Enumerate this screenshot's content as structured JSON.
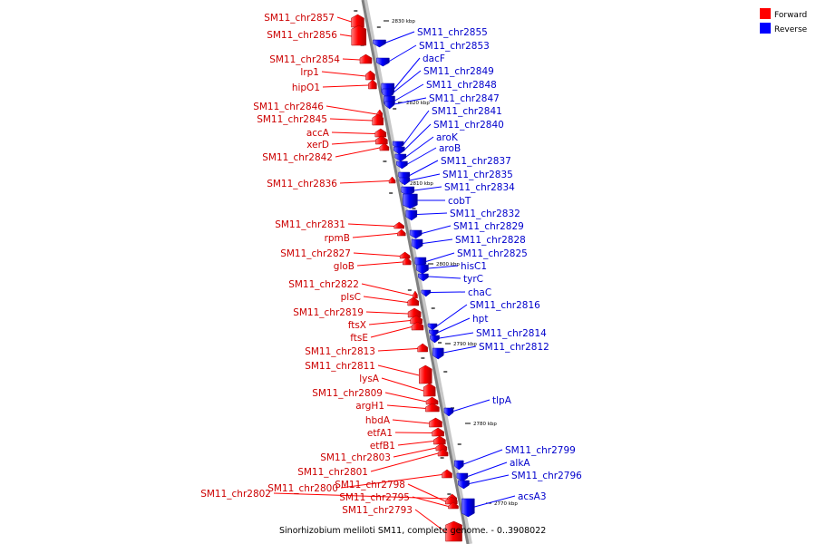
{
  "caption": "Sinorhizobium meliloti SM11, complete genome. - 0..3908022",
  "legend": {
    "forward": {
      "label": "Forward",
      "color": "#ff0000"
    },
    "reverse": {
      "label": "Reverse",
      "color": "#0000ff"
    }
  },
  "ticks": [
    "2830 kbp",
    "2820 kbp",
    "2810 kbp",
    "2800 kbp",
    "2790 kbp",
    "2780 kbp",
    "2770 kbp"
  ],
  "forward_genes": [
    "SM11_chr2857",
    "SM11_chr2856",
    "SM11_chr2854",
    "lrp1",
    "hipO1",
    "SM11_chr2846",
    "SM11_chr2845",
    "accA",
    "xerD",
    "SM11_chr2842",
    "SM11_chr2836",
    "SM11_chr2831",
    "rpmB",
    "SM11_chr2827",
    "gloB",
    "SM11_chr2822",
    "plsC",
    "SM11_chr2819",
    "ftsX",
    "ftsE",
    "SM11_chr2813",
    "SM11_chr2811",
    "lysA",
    "SM11_chr2809",
    "argH1",
    "hbdA",
    "etfA1",
    "etfB1",
    "SM11_chr2803",
    "SM11_chr2801",
    "SM11_chr2800",
    "SM11_chr2802",
    "SM11_chr2798",
    "SM11_chr2795",
    "SM11_chr2793"
  ],
  "reverse_genes": [
    "SM11_chr2855",
    "SM11_chr2853",
    "dacF",
    "SM11_chr2849",
    "SM11_chr2848",
    "SM11_chr2847",
    "SM11_chr2841",
    "SM11_chr2840",
    "aroK",
    "aroB",
    "SM11_chr2837",
    "SM11_chr2835",
    "SM11_chr2834",
    "cobT",
    "SM11_chr2832",
    "SM11_chr2829",
    "SM11_chr2828",
    "SM11_chr2825",
    "hisC1",
    "tyrC",
    "chaC",
    "SM11_chr2816",
    "hpt",
    "SM11_chr2814",
    "SM11_chr2812",
    "tlpA",
    "SM11_chr2799",
    "alkA",
    "SM11_chr2796",
    "acsA3"
  ]
}
